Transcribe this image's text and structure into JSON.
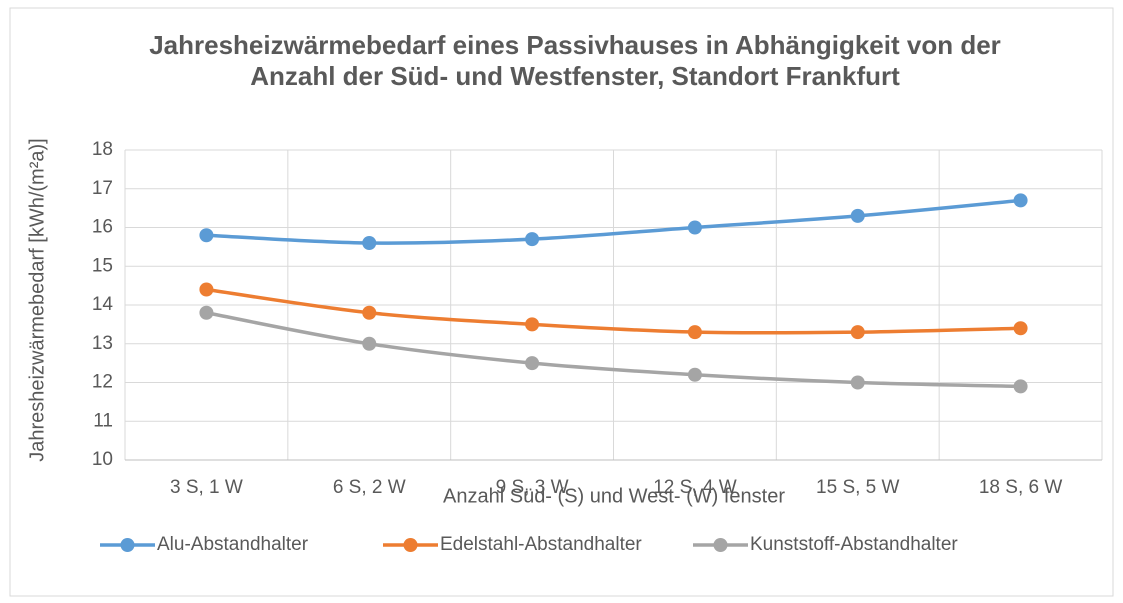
{
  "chart_data": {
    "type": "line",
    "title": "Jahresheizwärmebedarf eines Passivhauses in Abhängigkeit von der Anzahl der Süd- und Westfenster, Standort Frankfurt",
    "x_label": "Anzahl Süd- (S) und West- (W) fenster",
    "y_label": "Jahresheizwärmebedarf [kWh/(m²a)]",
    "categories": [
      "3 S, 1 W",
      "6 S, 2 W",
      "9 S, 3 W",
      "12 S, 4 W",
      "15 S, 5 W",
      "18 S, 6 W"
    ],
    "series": [
      {
        "name": "Alu-Abstandhalter",
        "color": "#5b9bd5",
        "values": [
          15.8,
          15.6,
          15.7,
          16.0,
          16.3,
          16.7
        ]
      },
      {
        "name": "Edelstahl-Abstandhalter",
        "color": "#ed7d31",
        "values": [
          14.4,
          13.8,
          13.5,
          13.3,
          13.3,
          13.4
        ]
      },
      {
        "name": "Kunststoff-Abstandhalter",
        "color": "#a5a5a5",
        "values": [
          13.8,
          13.0,
          12.5,
          12.2,
          12.0,
          11.9
        ]
      }
    ],
    "ylim": [
      10,
      18
    ],
    "yticks": [
      10,
      11,
      12,
      13,
      14,
      15,
      16,
      17,
      18
    ],
    "grid": true,
    "legend": "bottom"
  }
}
